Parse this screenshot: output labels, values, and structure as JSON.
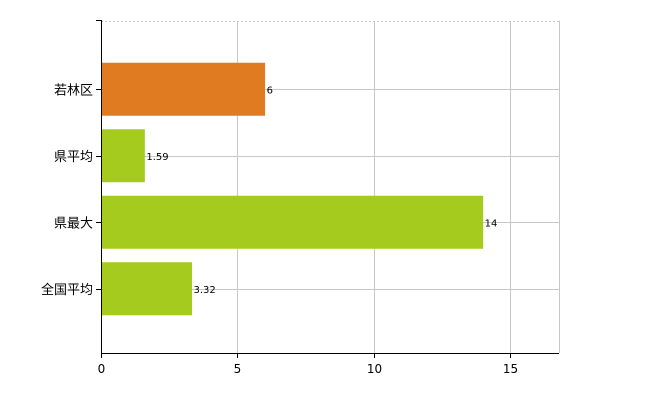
{
  "chart_data": {
    "type": "bar",
    "orientation": "horizontal",
    "categories": [
      "若林区",
      "県平均",
      "県最大",
      "全国平均"
    ],
    "values": [
      6,
      1.59,
      14,
      3.32
    ],
    "value_labels": [
      "6",
      "1.59",
      "14",
      "3.32"
    ],
    "bar_colors": [
      "#E07B22",
      "#A5CB1F",
      "#A5CB1F",
      "#A5CB1F"
    ],
    "xlim": [
      0,
      16.8
    ],
    "x_ticks": [
      0,
      5,
      10,
      15
    ],
    "x_tick_labels": [
      "0",
      "5",
      "10",
      "15"
    ],
    "grid": true,
    "legend": "none",
    "title": "",
    "xlabel": "",
    "ylabel": ""
  }
}
